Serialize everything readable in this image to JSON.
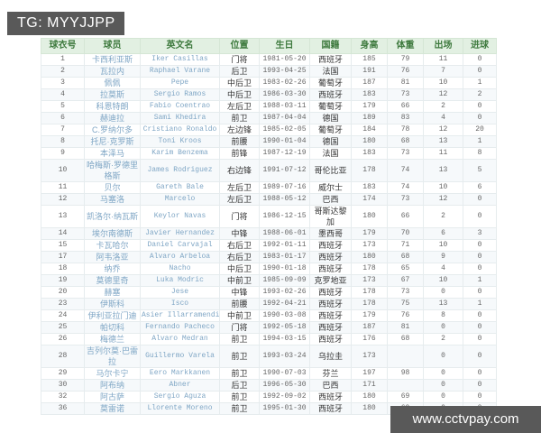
{
  "watermarks": {
    "top_left": "TG: MYYJJPP",
    "bottom_right": "www.cctvpay.com"
  },
  "colors": {
    "header_bg": "#e2f0e2",
    "header_text": "#3e7a3e",
    "link_text": "#7fa6c5",
    "body_text": "#666666",
    "cjk_text": "#333333",
    "stripe_bg": "#f6f9fb",
    "border": "#e6ecee",
    "watermark_bg": "#595959",
    "watermark_text": "#ffffff"
  },
  "table": {
    "columns": [
      "球衣号",
      "球员",
      "英文名",
      "位置",
      "生日",
      "国籍",
      "身高",
      "体重",
      "出场",
      "进球"
    ],
    "rows": [
      [
        "1",
        "卡西利亚斯",
        "Iker Casillas",
        "门将",
        "1981-05-20",
        "西班牙",
        "185",
        "79",
        "11",
        "0"
      ],
      [
        "2",
        "瓦拉内",
        "Raphael Varane",
        "后卫",
        "1993-04-25",
        "法国",
        "191",
        "76",
        "7",
        "0"
      ],
      [
        "3",
        "佩佩",
        "Pepe",
        "中后卫",
        "1983-02-26",
        "葡萄牙",
        "187",
        "81",
        "10",
        "1"
      ],
      [
        "4",
        "拉莫斯",
        "Sergio Ramos",
        "中后卫",
        "1986-03-30",
        "西班牙",
        "183",
        "73",
        "12",
        "2"
      ],
      [
        "5",
        "科恩特朗",
        "Fabio Coentrao",
        "左后卫",
        "1988-03-11",
        "葡萄牙",
        "179",
        "66",
        "2",
        "0"
      ],
      [
        "6",
        "赫迪拉",
        "Sami Khedira",
        "前卫",
        "1987-04-04",
        "德国",
        "189",
        "83",
        "4",
        "0"
      ],
      [
        "7",
        "C.罗纳尔多",
        "Cristiano Ronaldo",
        "左边锋",
        "1985-02-05",
        "葡萄牙",
        "184",
        "78",
        "12",
        "20"
      ],
      [
        "8",
        "托尼·克罗斯",
        "Toni Kroos",
        "前腰",
        "1990-01-04",
        "德国",
        "180",
        "68",
        "13",
        "1"
      ],
      [
        "9",
        "本泽马",
        "Karim Benzema",
        "前锋",
        "1987-12-19",
        "法国",
        "183",
        "73",
        "11",
        "8"
      ],
      [
        "10",
        "哈梅斯·罗德里格斯",
        "James Rodriguez",
        "右边锋",
        "1991-07-12",
        "哥伦比亚",
        "178",
        "74",
        "13",
        "5"
      ],
      [
        "11",
        "贝尔",
        "Gareth Bale",
        "左后卫",
        "1989-07-16",
        "威尔士",
        "183",
        "74",
        "10",
        "6"
      ],
      [
        "12",
        "马塞洛",
        "Marcelo",
        "左后卫",
        "1988-05-12",
        "巴西",
        "174",
        "73",
        "12",
        "0"
      ],
      [
        "13",
        "凯洛尔·纳瓦斯",
        "Keylor Navas",
        "门将",
        "1986-12-15",
        "哥斯达黎加",
        "180",
        "66",
        "2",
        "0"
      ],
      [
        "14",
        "埃尔南德斯",
        "Javier Hernandez",
        "中锋",
        "1988-06-01",
        "墨西哥",
        "179",
        "70",
        "6",
        "3"
      ],
      [
        "15",
        "卡瓦哈尔",
        "Daniel Carvajal",
        "右后卫",
        "1992-01-11",
        "西班牙",
        "173",
        "71",
        "10",
        "0"
      ],
      [
        "17",
        "阿韦洛亚",
        "Alvaro Arbeloa",
        "右后卫",
        "1983-01-17",
        "西班牙",
        "180",
        "68",
        "9",
        "0"
      ],
      [
        "18",
        "纳乔",
        "Nacho",
        "中后卫",
        "1990-01-18",
        "西班牙",
        "178",
        "65",
        "4",
        "0"
      ],
      [
        "19",
        "莫德里奇",
        "Luka Modric",
        "中前卫",
        "1985-09-09",
        "克罗地亚",
        "173",
        "67",
        "10",
        "1"
      ],
      [
        "20",
        "赫塞",
        "Jese",
        "中锋",
        "1993-02-26",
        "西班牙",
        "178",
        "73",
        "0",
        "0"
      ],
      [
        "23",
        "伊斯科",
        "Isco",
        "前腰",
        "1992-04-21",
        "西班牙",
        "178",
        "75",
        "13",
        "1"
      ],
      [
        "24",
        "伊利亚拉门迪",
        "Asier Illarramendi",
        "中前卫",
        "1990-03-08",
        "西班牙",
        "179",
        "76",
        "8",
        "0"
      ],
      [
        "25",
        "帕切科",
        "Fernando Pacheco",
        "门将",
        "1992-05-18",
        "西班牙",
        "187",
        "81",
        "0",
        "0"
      ],
      [
        "26",
        "梅德兰",
        "Alvaro Medran",
        "前卫",
        "1994-03-15",
        "西班牙",
        "176",
        "68",
        "2",
        "0"
      ],
      [
        "28",
        "吉列尔莫·巴雷拉",
        "Guillermo Varela",
        "前卫",
        "1993-03-24",
        "乌拉圭",
        "173",
        "",
        "0",
        "0"
      ],
      [
        "29",
        "马尔卡宁",
        "Eero Markkanen",
        "前卫",
        "1990-07-03",
        "芬兰",
        "197",
        "98",
        "0",
        "0"
      ],
      [
        "30",
        "阿布纳",
        "Abner",
        "后卫",
        "1996-05-30",
        "巴西",
        "171",
        "",
        "0",
        "0"
      ],
      [
        "32",
        "阿古萨",
        "Sergio Aguza",
        "前卫",
        "1992-09-02",
        "西班牙",
        "180",
        "69",
        "0",
        "0"
      ],
      [
        "36",
        "莫雷诺",
        "Llorente Moreno",
        "前卫",
        "1995-01-30",
        "西班牙",
        "180",
        "69",
        "0",
        "0"
      ]
    ]
  }
}
